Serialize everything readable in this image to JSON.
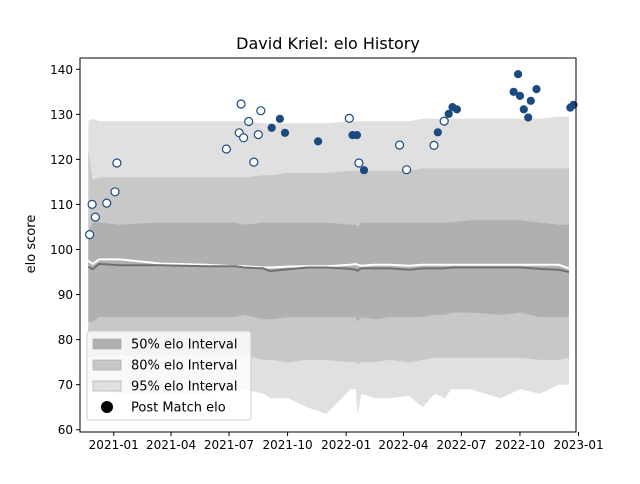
{
  "chart_data": {
    "type": "scatter",
    "title": "David Kriel: elo History",
    "xlabel": "",
    "ylabel": "elo score",
    "xlim": [
      "2020-11-09",
      "2022-12-28"
    ],
    "ylim": [
      59.5,
      142.5
    ],
    "yticks": [
      60,
      70,
      80,
      90,
      100,
      110,
      120,
      130,
      140
    ],
    "xticks": [
      "2021-01",
      "2021-04",
      "2021-07",
      "2021-10",
      "2022-01",
      "2022-04",
      "2022-07",
      "2022-10",
      "2023-01"
    ],
    "grid": false,
    "legend_position": "lower-left",
    "legend": [
      {
        "label": "50% elo Interval",
        "kind": "band",
        "color": "#b0b0b0"
      },
      {
        "label": "80% elo Interval",
        "kind": "band",
        "color": "#c8c8c8"
      },
      {
        "label": "95% elo Interval",
        "kind": "band",
        "color": "#e0e0e0"
      },
      {
        "label": "Post Match elo",
        "kind": "marker",
        "color": "#000000"
      }
    ],
    "bands": {
      "x": [
        "2020-11-22",
        "2020-11-29",
        "2020-12-09",
        "2021-01-10",
        "2021-03-15",
        "2021-05-26",
        "2021-07-10",
        "2021-07-25",
        "2021-08-24",
        "2021-09-04",
        "2021-10-02",
        "2021-11-01",
        "2021-12-01",
        "2022-01-08",
        "2022-01-16",
        "2022-01-19",
        "2022-01-25",
        "2022-02-15",
        "2022-03-10",
        "2022-04-10",
        "2022-05-01",
        "2022-05-20",
        "2022-06-05",
        "2022-06-15",
        "2022-07-15",
        "2022-09-01",
        "2022-10-01",
        "2022-11-01",
        "2022-12-01",
        "2022-12-17"
      ],
      "lo95": [
        70,
        70,
        69,
        68,
        68,
        68,
        69,
        69,
        68,
        67,
        67,
        65,
        63.5,
        69,
        69,
        63.2,
        68,
        67,
        67,
        67.5,
        65,
        68,
        67,
        69,
        69,
        67,
        69,
        68,
        70,
        70
      ],
      "lo80": [
        76,
        76,
        76.5,
        76.5,
        76.5,
        76.5,
        76.5,
        76.5,
        75.5,
        75.5,
        75,
        75.5,
        75.5,
        75,
        75,
        74.5,
        75,
        75,
        75.5,
        75,
        75.5,
        76,
        76,
        76,
        76,
        76,
        76,
        75.5,
        75.5,
        76
      ],
      "lo50": [
        84,
        84,
        85,
        85,
        85,
        85,
        85,
        85.5,
        84.5,
        84.5,
        85,
        85,
        85,
        85,
        85,
        84,
        85,
        84.5,
        85,
        85,
        85,
        85.5,
        85.5,
        86,
        86,
        85.5,
        86,
        85,
        85,
        85
      ],
      "hi50": [
        104,
        106,
        106,
        105.5,
        106,
        106,
        106,
        105.5,
        106,
        106,
        106,
        106,
        106,
        105.5,
        105.5,
        105,
        106,
        106,
        106,
        106,
        106,
        106,
        106,
        106,
        106.5,
        106.5,
        106.5,
        106,
        105.5,
        105.5
      ],
      "hi80": [
        122,
        115.5,
        116,
        116,
        116,
        116,
        116,
        116,
        116.5,
        116.5,
        117,
        117,
        117,
        117.5,
        117.5,
        117.5,
        117.5,
        117.5,
        117.5,
        117.5,
        118,
        118,
        118,
        118,
        118,
        118,
        118,
        118,
        118,
        118
      ],
      "hi95": [
        128.5,
        129,
        128.5,
        128.5,
        128.5,
        128.5,
        128.5,
        128.5,
        128,
        128,
        128,
        128,
        128,
        128.5,
        128.5,
        128.5,
        128.5,
        128.5,
        128.5,
        128.5,
        129,
        129,
        129,
        129,
        129,
        129,
        129,
        129,
        129.5,
        129.5
      ]
    },
    "lines": [
      {
        "color": "#ffffff",
        "width": 2,
        "values": [
          97.5,
          96.8,
          97.8,
          97.8,
          96.9,
          96.6,
          96.3,
          96.3,
          96.0,
          96.0,
          96.2,
          96.3,
          96.3,
          96.6,
          96.8,
          96.6,
          96.4,
          96.6,
          96.6,
          96.4,
          96.6,
          96.6,
          96.6,
          96.6,
          96.6,
          96.6,
          96.6,
          96.6,
          96.6,
          95.8
        ]
      },
      {
        "color": "#707070",
        "width": 2,
        "values": [
          96.2,
          95.6,
          96.8,
          96.5,
          96.5,
          96.3,
          96.3,
          96.0,
          95.8,
          95.2,
          95.6,
          96.0,
          96.0,
          95.7,
          95.5,
          95.3,
          95.8,
          95.8,
          95.8,
          95.5,
          95.8,
          95.8,
          95.8,
          96.0,
          96.0,
          96.0,
          96.0,
          95.7,
          95.5,
          95.0
        ]
      }
    ],
    "series": [
      {
        "marker_style": "open",
        "color": "#1a4a80",
        "points": [
          {
            "x": "2020-11-24",
            "y": 103.3
          },
          {
            "x": "2020-11-28",
            "y": 110.0
          },
          {
            "x": "2020-12-03",
            "y": 107.2
          },
          {
            "x": "2020-12-21",
            "y": 110.3
          },
          {
            "x": "2021-01-03",
            "y": 112.8
          },
          {
            "x": "2021-01-06",
            "y": 119.2
          },
          {
            "x": "2021-06-27",
            "y": 122.3
          },
          {
            "x": "2021-07-17",
            "y": 125.9
          },
          {
            "x": "2021-07-20",
            "y": 132.3
          },
          {
            "x": "2021-07-24",
            "y": 124.8
          },
          {
            "x": "2021-08-01",
            "y": 128.4
          },
          {
            "x": "2021-08-09",
            "y": 119.4
          },
          {
            "x": "2021-08-16",
            "y": 125.5
          },
          {
            "x": "2021-08-20",
            "y": 130.8
          },
          {
            "x": "2022-01-06",
            "y": 129.1
          },
          {
            "x": "2022-01-21",
            "y": 119.2
          },
          {
            "x": "2022-03-26",
            "y": 123.2
          },
          {
            "x": "2022-04-06",
            "y": 117.7
          },
          {
            "x": "2022-05-19",
            "y": 123.1
          },
          {
            "x": "2022-06-04",
            "y": 128.5
          }
        ]
      },
      {
        "marker_style": "filled",
        "color": "#1a4a80",
        "points": [
          {
            "x": "2021-09-06",
            "y": 127.0
          },
          {
            "x": "2021-09-19",
            "y": 129.0
          },
          {
            "x": "2021-09-27",
            "y": 125.9
          },
          {
            "x": "2021-11-18",
            "y": 124.0
          },
          {
            "x": "2022-01-11",
            "y": 125.4
          },
          {
            "x": "2022-01-18",
            "y": 125.4
          },
          {
            "x": "2022-01-29",
            "y": 117.6
          },
          {
            "x": "2022-05-25",
            "y": 126.0
          },
          {
            "x": "2022-06-11",
            "y": 130.1
          },
          {
            "x": "2022-06-17",
            "y": 131.6
          },
          {
            "x": "2022-06-24",
            "y": 131.1
          },
          {
            "x": "2022-09-21",
            "y": 135.0
          },
          {
            "x": "2022-09-28",
            "y": 138.9
          },
          {
            "x": "2022-10-01",
            "y": 134.1
          },
          {
            "x": "2022-10-07",
            "y": 131.1
          },
          {
            "x": "2022-10-14",
            "y": 129.3
          },
          {
            "x": "2022-10-18",
            "y": 133.0
          },
          {
            "x": "2022-10-27",
            "y": 135.6
          },
          {
            "x": "2022-12-19",
            "y": 131.5
          },
          {
            "x": "2022-12-24",
            "y": 132.1
          }
        ]
      }
    ]
  }
}
